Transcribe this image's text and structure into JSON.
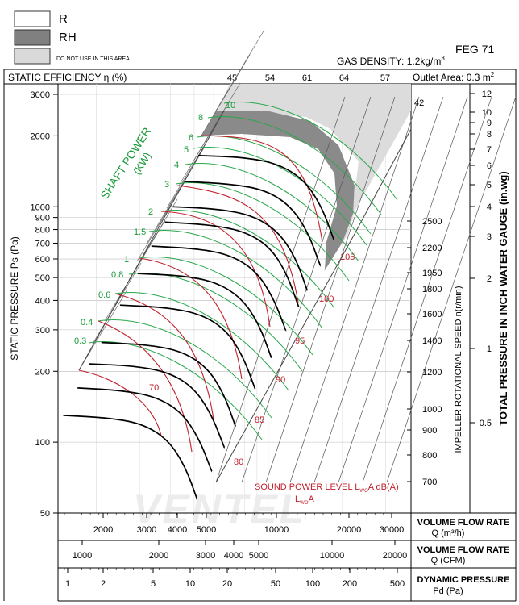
{
  "legend": {
    "r_label": "R",
    "rh_label": "RH",
    "na_label": "DO NOT USE IN THIS AREA",
    "colors": {
      "r": "#ffffff",
      "rh": "#808080",
      "na": "#d9d9d9"
    }
  },
  "header": {
    "model": "FEG 71",
    "gas_density": "GAS DENSITY: 1.2kg/m",
    "gas_density_sup": "3",
    "efficiency_label": "STATIC EFFICIENCY η (%)",
    "efficiency_values": [
      "45",
      "54",
      "61",
      "64",
      "57"
    ],
    "outlet_area": "Outlet Area: 0.3 m",
    "outlet_area_sup": "2"
  },
  "axes": {
    "static_pressure_label": "STATIC PRESSURE Ps (Pa)",
    "ps_ticks": [
      "3000",
      "2000",
      "1000",
      "900",
      "800",
      "700",
      "600",
      "500",
      "400",
      "300",
      "200",
      "100",
      "50"
    ],
    "speed_label": "IMPELLER ROTATIONAL SPEED n(r/min)",
    "speed_ticks": [
      "2500",
      "2200",
      "1950",
      "1800",
      "1600",
      "1400",
      "1200",
      "1000",
      "900",
      "800",
      "700"
    ],
    "top_speed": "42",
    "inwg_label": "TOTAL PRESSURE IN INCH WATER GAUGE (in.wg)",
    "inwg_ticks": [
      "12",
      "10",
      "9",
      "8",
      "7",
      "6",
      "5",
      "4",
      "3",
      "2",
      "1",
      "0.5"
    ],
    "shaft_power_label": "SHAFT POWER",
    "shaft_power_unit": "(KW)",
    "shaft_power_values": [
      "10",
      "8",
      "6",
      "5",
      "4",
      "3",
      "2",
      "1.5",
      "1",
      "0.8",
      "0.6",
      "0.4",
      "0.3"
    ],
    "sound_values": [
      "105",
      "100",
      "95",
      "90",
      "85",
      "80",
      "70"
    ],
    "sound_label": "SOUND POWER LEVEL L",
    "sound_label_sub": "WO",
    "sound_label_tail": "A dB(A)",
    "sound_label2": "L",
    "sound_label2_sub": "WO",
    "sound_label2_tail": "A"
  },
  "bottom": {
    "flow_m3h_ticks": [
      "2000",
      "3000",
      "4000",
      "5000",
      "10000",
      "20000",
      "30000"
    ],
    "flow_m3h_label": "VOLUME FLOW RATE",
    "flow_m3h_unit": "Q (m³/h)",
    "flow_cfm_ticks": [
      "1000",
      "2000",
      "3000",
      "4000",
      "5000",
      "10000",
      "20000"
    ],
    "flow_cfm_label": "VOLUME FLOW RATE",
    "flow_cfm_unit": "Q (CFM)",
    "dyn_ticks": [
      "1",
      "2",
      "5",
      "10",
      "20",
      "50",
      "100",
      "200",
      "500"
    ],
    "dyn_label": "DYNAMIC PRESSURE",
    "dyn_unit": "Pd (Pa)"
  },
  "watermark": "VENTEL",
  "chart_data": {
    "type": "line",
    "title": "FEG 71",
    "xlabel": "VOLUME FLOW RATE Q (m³/h)",
    "ylabel": "STATIC PRESSURE Ps (Pa)",
    "x_scale": "log",
    "y_scale": "log",
    "xlim": [
      1400,
      38000
    ],
    "ylim": [
      50,
      3000
    ],
    "fan_curves": [
      {
        "speed": 2500,
        "points": [
          [
            5200,
            1650
          ],
          [
            8000,
            1620
          ],
          [
            11000,
            1520
          ],
          [
            14000,
            1300
          ],
          [
            16500,
            1000
          ],
          [
            18500,
            720
          ]
        ]
      },
      {
        "speed": 2200,
        "points": [
          [
            4600,
            1280
          ],
          [
            7000,
            1250
          ],
          [
            9700,
            1180
          ],
          [
            12300,
            1010
          ],
          [
            14500,
            780
          ],
          [
            16300,
            560
          ]
        ]
      },
      {
        "speed": 1950,
        "points": [
          [
            4100,
            1000
          ],
          [
            6200,
            980
          ],
          [
            8600,
            920
          ],
          [
            10900,
            790
          ],
          [
            12900,
            610
          ],
          [
            14400,
            440
          ]
        ]
      },
      {
        "speed": 1800,
        "points": [
          [
            3800,
            860
          ],
          [
            5700,
            840
          ],
          [
            7900,
            790
          ],
          [
            10100,
            680
          ],
          [
            11900,
            520
          ],
          [
            13300,
            375
          ]
        ]
      },
      {
        "speed": 1600,
        "points": [
          [
            3350,
            680
          ],
          [
            5100,
            665
          ],
          [
            7000,
            625
          ],
          [
            8900,
            535
          ],
          [
            10500,
            410
          ],
          [
            11800,
            297
          ]
        ]
      },
      {
        "speed": 1400,
        "points": [
          [
            2950,
            520
          ],
          [
            4450,
            510
          ],
          [
            6100,
            480
          ],
          [
            7800,
            410
          ],
          [
            9200,
            315
          ],
          [
            10300,
            228
          ]
        ]
      },
      {
        "speed": 1200,
        "points": [
          [
            2500,
            382
          ],
          [
            3800,
            374
          ],
          [
            5250,
            352
          ],
          [
            6700,
            302
          ],
          [
            7900,
            232
          ],
          [
            8850,
            168
          ]
        ]
      },
      {
        "speed": 1000,
        "points": [
          [
            2100,
            265
          ],
          [
            3150,
            260
          ],
          [
            4380,
            245
          ],
          [
            5600,
            210
          ],
          [
            6600,
            161
          ],
          [
            7350,
            117
          ]
        ]
      },
      {
        "speed": 900,
        "points": [
          [
            1880,
            215
          ],
          [
            2850,
            211
          ],
          [
            3940,
            198
          ],
          [
            5000,
            170
          ],
          [
            5900,
            130
          ],
          [
            6630,
            95
          ]
        ]
      },
      {
        "speed": 800,
        "points": [
          [
            1680,
            170
          ],
          [
            2530,
            166
          ],
          [
            3500,
            156
          ],
          [
            4450,
            134
          ],
          [
            5250,
            103
          ],
          [
            5900,
            75
          ]
        ]
      },
      {
        "speed": 700,
        "points": [
          [
            1470,
            130
          ],
          [
            2220,
            127
          ],
          [
            3060,
            120
          ],
          [
            3900,
            103
          ],
          [
            4600,
            79
          ],
          [
            5150,
            57
          ]
        ]
      }
    ],
    "shaft_power_kw": [
      10,
      8,
      6,
      5,
      4,
      3,
      2,
      1.5,
      1,
      0.8,
      0.6,
      0.4,
      0.3
    ],
    "sound_power_dba": [
      105,
      100,
      95,
      90,
      85,
      80,
      70
    ],
    "static_efficiency_pct": [
      45,
      54,
      61,
      64,
      57
    ],
    "gas_density": "1.2 kg/m3",
    "outlet_area": "0.3 m2",
    "regions": [
      "R",
      "RH",
      "DO NOT USE IN THIS AREA"
    ]
  }
}
